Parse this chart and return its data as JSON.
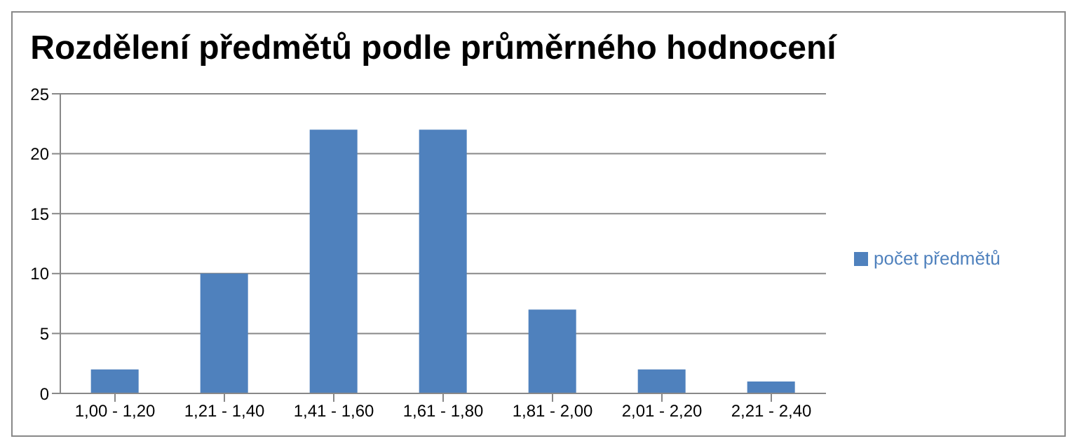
{
  "chart_data": {
    "type": "bar",
    "title": "Rozdělení předmětů podle průměrného hodnocení",
    "categories": [
      "1,00 - 1,20",
      "1,21 - 1,40",
      "1,41 - 1,60",
      "1,61 - 1,80",
      "1,81 - 2,00",
      "2,01 - 2,20",
      "2,21 - 2,40"
    ],
    "series": [
      {
        "name": "počet předmětů",
        "color": "#4f81bd",
        "values": [
          2,
          10,
          22,
          22,
          7,
          2,
          1
        ]
      }
    ],
    "ylim": [
      0,
      25
    ],
    "yticks": [
      0,
      5,
      10,
      15,
      20,
      25
    ],
    "grid": "y",
    "legend": "right"
  }
}
